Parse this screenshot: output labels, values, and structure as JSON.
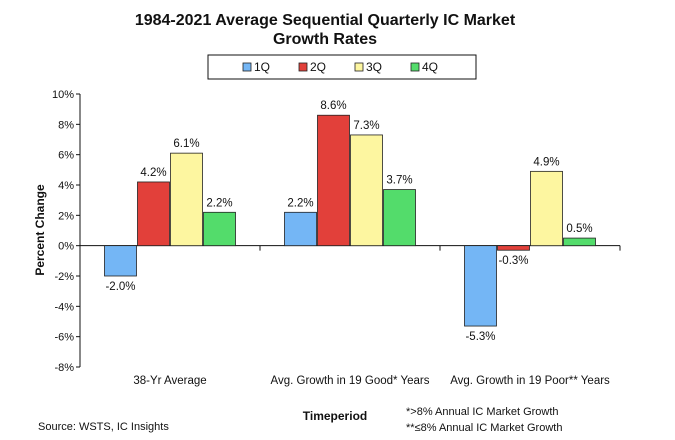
{
  "chart_data": {
    "type": "bar",
    "title_lines": [
      "1984-2021 Average Sequential Quarterly IC Market",
      "Growth Rates"
    ],
    "categories": [
      "38-Yr Average",
      "Avg. Growth in 19 Good* Years",
      "Avg. Growth in 19 Poor** Years"
    ],
    "series": [
      {
        "name": "1Q",
        "color": "#74b6f5",
        "values": [
          -2.0,
          2.2,
          -5.3
        ],
        "labels": [
          "-2.0%",
          "2.2%",
          "-5.3%"
        ]
      },
      {
        "name": "2Q",
        "color": "#e2403a",
        "values": [
          4.2,
          8.6,
          -0.3
        ],
        "labels": [
          "4.2%",
          "8.6%",
          "-0.3%"
        ]
      },
      {
        "name": "3Q",
        "color": "#fdf6a0",
        "values": [
          6.1,
          7.3,
          4.9
        ],
        "labels": [
          "6.1%",
          "7.3%",
          "4.9%"
        ]
      },
      {
        "name": "4Q",
        "color": "#53dc6b",
        "values": [
          2.2,
          3.7,
          0.5
        ],
        "labels": [
          "2.2%",
          "3.7%",
          "0.5%"
        ]
      }
    ],
    "ylabel": "Percent Change",
    "xlabel": "Timeperiod",
    "ylim": [
      -8,
      10
    ],
    "yticks": [
      "-8%",
      "-6%",
      "-4%",
      "-2%",
      "0%",
      "2%",
      "4%",
      "6%",
      "8%",
      "10%"
    ],
    "legend_position": "top-center",
    "grid": false
  },
  "footer": {
    "source": "Source: WSTS, IC Insights",
    "note1": "*>8% Annual IC Market Growth",
    "note2": "**≤8% Annual IC Market Growth"
  }
}
